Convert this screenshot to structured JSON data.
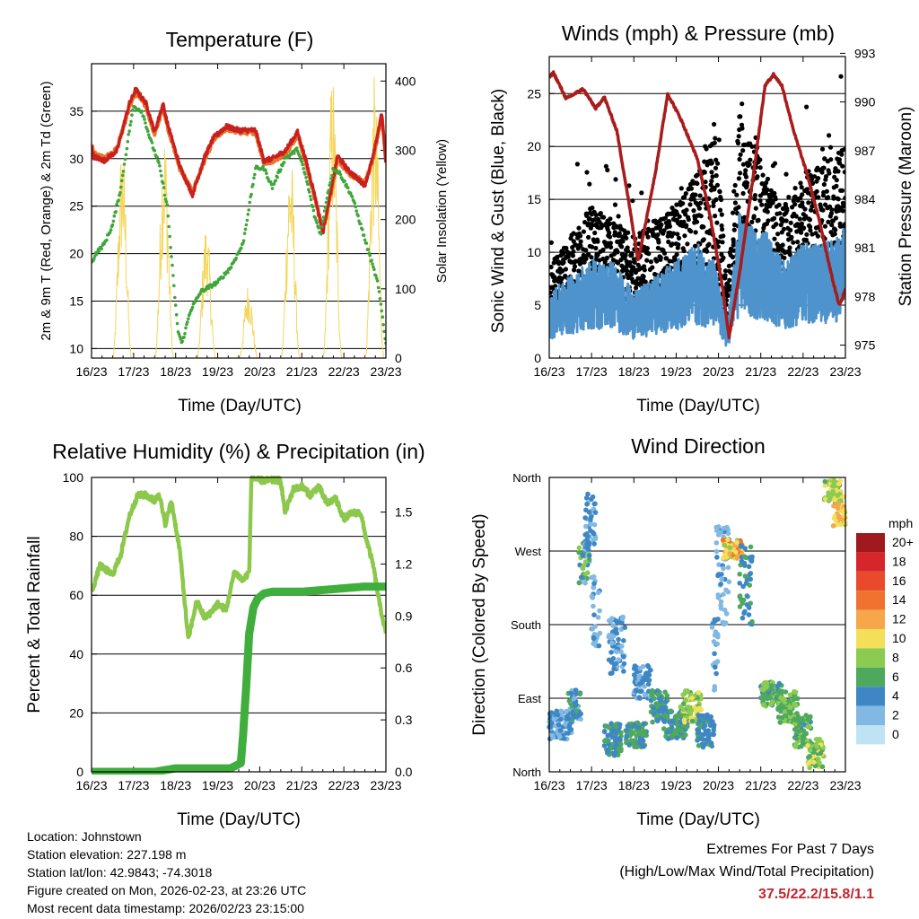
{
  "colors": {
    "temp2m": "#e8732a",
    "temp9m": "#c8201e",
    "dewpoint": "#3fa63a",
    "solar": "#f3d65a",
    "gust": "#000000",
    "wind": "#4e93cc",
    "pressure": "#a81c1c",
    "rh": "#8cc84b",
    "precip": "#3fae3c",
    "extremes_text": "#c0262d"
  },
  "time_ticks": [
    "16/23",
    "17/23",
    "18/23",
    "19/23",
    "20/23",
    "21/23",
    "22/23",
    "23/23"
  ],
  "chart_data": [
    {
      "id": "temperature",
      "type": "line",
      "title": "Temperature (F)",
      "xlabel": "Time (Day/UTC)",
      "ylabel": "2m & 9m T (Red, Orange) & 2m Td (Green)",
      "y2label": "Solar Insolation (Yellow)",
      "xlim": [
        0,
        7
      ],
      "ylim": [
        9,
        40
      ],
      "yticks": [
        10,
        15,
        20,
        25,
        30,
        35
      ],
      "y2lim": [
        0,
        425
      ],
      "y2ticks": [
        0,
        100,
        200,
        300,
        400
      ],
      "series": [
        {
          "name": "2m T",
          "color_key": "temp2m",
          "x": [
            0,
            0.05,
            0.3,
            0.6,
            0.9,
            1.05,
            1.3,
            1.5,
            1.7,
            1.8,
            2.1,
            2.4,
            2.7,
            2.9,
            3.2,
            3.5,
            3.9,
            4.1,
            4.3,
            4.6,
            4.9,
            5.1,
            5.3,
            5.5,
            5.7,
            5.85,
            6.1,
            6.5,
            6.7,
            6.9,
            7
          ],
          "y": [
            31.5,
            30.5,
            30,
            31,
            35.5,
            37,
            35.5,
            32.5,
            35.5,
            33.5,
            29,
            26.5,
            30,
            32,
            33.2,
            32.8,
            32.8,
            29.5,
            29.8,
            30.5,
            32.5,
            29.5,
            26,
            22.5,
            26.5,
            30,
            28.5,
            27.5,
            30,
            34.5,
            30
          ]
        },
        {
          "name": "9m T",
          "color_key": "temp9m",
          "x": [
            0,
            0.05,
            0.3,
            0.6,
            0.9,
            1.05,
            1.3,
            1.5,
            1.7,
            1.8,
            2.1,
            2.4,
            2.7,
            2.9,
            3.2,
            3.5,
            3.9,
            4.1,
            4.3,
            4.6,
            4.9,
            5.1,
            5.3,
            5.5,
            5.7,
            5.85,
            6.1,
            6.5,
            6.7,
            6.9,
            7
          ],
          "y": [
            31.2,
            30.2,
            29.8,
            30.8,
            35.8,
            37.3,
            35.8,
            32.8,
            35.8,
            33.8,
            29.2,
            26.2,
            30.3,
            32.2,
            33.4,
            33,
            33,
            29.8,
            30,
            30.8,
            32.8,
            29.8,
            26.3,
            22.2,
            26.8,
            30.3,
            28.8,
            27.2,
            30.3,
            34.8,
            29.5
          ]
        },
        {
          "name": "2m Td",
          "color_key": "dewpoint",
          "x": [
            0,
            0.1,
            0.3,
            0.5,
            0.7,
            0.9,
            1.0,
            1.2,
            1.4,
            1.6,
            1.8,
            1.95,
            2.05,
            2.15,
            2.35,
            2.6,
            3.0,
            3.3,
            3.6,
            3.9,
            4.1,
            4.3,
            4.6,
            4.9,
            5.1,
            5.3,
            5.45,
            5.6,
            5.75,
            5.9,
            6.2,
            6.5,
            6.8,
            6.9,
            7
          ],
          "y": [
            19,
            20,
            21,
            23,
            27,
            33,
            35.5,
            35,
            32,
            29.5,
            25,
            17,
            12,
            10.5,
            14,
            16,
            17,
            18.5,
            21,
            29,
            29,
            27,
            30,
            31,
            28,
            24,
            22,
            26,
            29,
            28.5,
            26,
            21.5,
            17,
            14,
            10.5
          ]
        }
      ],
      "solar": {
        "name": "Solar Insolation",
        "color_key": "solar",
        "peaks": [
          {
            "center": 0.73,
            "width": 0.45,
            "peak": 320
          },
          {
            "center": 1.73,
            "width": 0.45,
            "peak": 340
          },
          {
            "center": 2.73,
            "width": 0.45,
            "peak": 200
          },
          {
            "center": 3.73,
            "width": 0.45,
            "peak": 110
          },
          {
            "center": 4.73,
            "width": 0.45,
            "peak": 305
          },
          {
            "center": 5.73,
            "width": 0.45,
            "peak": 420
          },
          {
            "center": 6.73,
            "width": 0.45,
            "peak": 410
          }
        ]
      }
    },
    {
      "id": "winds",
      "type": "scatter+line",
      "title": "Winds (mph) & Pressure (mb)",
      "xlabel": "Time (Day/UTC)",
      "ylabel": "Sonic Wind & Gust (Blue, Black)",
      "y2label": "Station Pressure (Maroon)",
      "xlim": [
        0,
        7
      ],
      "ylim": [
        0,
        28.5
      ],
      "yticks": [
        0,
        5,
        10,
        15,
        20,
        25
      ],
      "y2lim": [
        974.2,
        992.8
      ],
      "y2ticks": [
        975,
        978,
        981,
        984,
        987,
        990,
        993
      ],
      "wind_mean": {
        "x": [
          0,
          0.5,
          1.0,
          1.5,
          2.0,
          2.5,
          3.0,
          3.5,
          3.9,
          4.2,
          4.5,
          4.8,
          5.1,
          5.5,
          6.0,
          6.5,
          7
        ],
        "y": [
          4,
          5,
          6,
          6,
          4,
          5,
          6,
          7,
          6,
          2,
          9,
          8,
          8,
          6,
          7,
          7,
          8
        ]
      },
      "gust_mean": {
        "x": [
          0,
          0.5,
          1.0,
          1.5,
          2.0,
          2.5,
          3.0,
          3.5,
          3.9,
          4.2,
          4.5,
          4.8,
          5.1,
          5.5,
          6.0,
          6.5,
          7
        ],
        "y": [
          6,
          8,
          10,
          9,
          8,
          9,
          10,
          12,
          16,
          5,
          16,
          14,
          12,
          10,
          12,
          13,
          14
        ]
      },
      "pressure": {
        "x": [
          0,
          0.1,
          0.4,
          0.8,
          1.1,
          1.3,
          1.6,
          1.9,
          2.1,
          2.5,
          2.8,
          3.1,
          3.5,
          3.8,
          4.1,
          4.25,
          4.5,
          4.8,
          5.1,
          5.3,
          5.5,
          5.8,
          6.1,
          6.4,
          6.7,
          6.85,
          6.92,
          7
        ],
        "y": [
          991.5,
          991.8,
          990.2,
          990.8,
          989.6,
          990.3,
          988.2,
          983.5,
          980.2,
          985.5,
          990.5,
          989,
          986.5,
          983,
          978.5,
          975.5,
          979.5,
          985,
          991,
          991.7,
          991,
          988,
          985.5,
          982.5,
          979,
          977.5,
          977.8,
          978.5
        ]
      }
    },
    {
      "id": "humidity",
      "type": "line",
      "title": "Relative Humidity (%) & Precipitation (in)",
      "xlabel": "Time (Day/UTC)",
      "ylabel": "Percent & Total Rainfall",
      "xlim": [
        0,
        7
      ],
      "ylim": [
        0,
        100
      ],
      "yticks": [
        0,
        20,
        40,
        60,
        80,
        100
      ],
      "y2lim": [
        0,
        1.7
      ],
      "y2ticks": [
        0.0,
        0.3,
        0.6,
        0.9,
        1.2,
        1.5
      ],
      "y2tick_labels": [
        "0.0",
        "0.3",
        "0.6",
        "0.9",
        "1.2",
        "1.5"
      ],
      "series": [
        {
          "name": "Relative Humidity",
          "color_key": "rh",
          "x": [
            0,
            0.2,
            0.5,
            0.7,
            0.9,
            1.1,
            1.3,
            1.5,
            1.6,
            1.75,
            1.9,
            2.1,
            2.3,
            2.5,
            2.7,
            3.0,
            3.2,
            3.4,
            3.6,
            3.75,
            3.8,
            4.0,
            4.2,
            4.5,
            4.6,
            4.8,
            5.0,
            5.2,
            5.4,
            5.6,
            5.8,
            6.0,
            6.2,
            6.4,
            6.5,
            6.7,
            6.85,
            7
          ],
          "y": [
            61,
            70,
            67,
            74,
            87,
            94,
            94,
            92,
            95,
            84,
            92,
            75,
            45,
            58,
            52,
            57,
            55,
            68,
            65,
            68,
            100,
            99,
            99,
            99,
            88,
            96,
            97,
            94,
            97,
            91,
            93,
            86,
            88,
            88,
            81,
            70,
            57,
            47
          ]
        },
        {
          "name": "Total Precipitation",
          "color_key": "precip",
          "x": [
            0,
            1.5,
            2.0,
            3.3,
            3.55,
            3.6,
            3.68,
            3.75,
            3.85,
            3.95,
            4.1,
            4.3,
            5.0,
            5.5,
            6.0,
            6.5,
            7
          ],
          "y": [
            0,
            0,
            0.02,
            0.02,
            0.05,
            0.2,
            0.5,
            0.8,
            0.95,
            1.0,
            1.03,
            1.04,
            1.04,
            1.05,
            1.06,
            1.07,
            1.07
          ]
        }
      ]
    },
    {
      "id": "direction",
      "type": "scatter",
      "title": "Wind Direction",
      "xlabel": "Time (Day/UTC)",
      "ylabel": "Direction (Colored By Speed)",
      "xlim": [
        0,
        7
      ],
      "ylim": [
        0,
        360
      ],
      "yticks": [
        0,
        90,
        180,
        270,
        360
      ],
      "ytick_labels": [
        "North",
        "East",
        "South",
        "West",
        "North"
      ],
      "clusters": [
        {
          "x0": 0.0,
          "x1": 0.55,
          "dir": [
            40,
            75
          ],
          "speed": [
            1,
            5
          ]
        },
        {
          "x0": 0.45,
          "x1": 0.75,
          "dir": [
            60,
            100
          ],
          "speed": [
            2,
            6
          ]
        },
        {
          "x0": 0.7,
          "x1": 0.95,
          "dir": [
            230,
            280
          ],
          "speed": [
            2,
            8
          ]
        },
        {
          "x0": 0.85,
          "x1": 1.1,
          "dir": [
            270,
            340
          ],
          "speed": [
            2,
            5
          ]
        },
        {
          "x0": 1.0,
          "x1": 1.2,
          "dir": [
            150,
            240
          ],
          "speed": [
            1,
            4
          ]
        },
        {
          "x0": 1.3,
          "x1": 1.7,
          "dir": [
            20,
            60
          ],
          "speed": [
            3,
            7
          ]
        },
        {
          "x0": 1.4,
          "x1": 1.8,
          "dir": [
            120,
            190
          ],
          "speed": [
            2,
            5
          ]
        },
        {
          "x0": 1.8,
          "x1": 2.3,
          "dir": [
            30,
            60
          ],
          "speed": [
            4,
            7
          ]
        },
        {
          "x0": 2.0,
          "x1": 2.4,
          "dir": [
            90,
            130
          ],
          "speed": [
            2,
            5
          ]
        },
        {
          "x0": 2.4,
          "x1": 2.8,
          "dir": [
            60,
            100
          ],
          "speed": [
            4,
            7
          ]
        },
        {
          "x0": 2.7,
          "x1": 3.3,
          "dir": [
            40,
            75
          ],
          "speed": [
            3,
            7
          ]
        },
        {
          "x0": 3.1,
          "x1": 3.6,
          "dir": [
            60,
            100
          ],
          "speed": [
            6,
            11
          ]
        },
        {
          "x0": 3.5,
          "x1": 3.9,
          "dir": [
            30,
            70
          ],
          "speed": [
            3,
            6
          ]
        },
        {
          "x0": 3.85,
          "x1": 4.0,
          "dir": [
            100,
            200
          ],
          "speed": [
            1,
            4
          ]
        },
        {
          "x0": 3.95,
          "x1": 4.25,
          "dir": [
            180,
            300
          ],
          "speed": [
            1,
            4
          ]
        },
        {
          "x0": 4.1,
          "x1": 4.6,
          "dir": [
            260,
            285
          ],
          "speed": [
            8,
            16
          ]
        },
        {
          "x0": 4.5,
          "x1": 4.8,
          "dir": [
            180,
            280
          ],
          "speed": [
            3,
            7
          ]
        },
        {
          "x0": 5.0,
          "x1": 5.5,
          "dir": [
            80,
            110
          ],
          "speed": [
            4,
            9
          ]
        },
        {
          "x0": 5.4,
          "x1": 5.9,
          "dir": [
            60,
            100
          ],
          "speed": [
            5,
            8
          ]
        },
        {
          "x0": 5.8,
          "x1": 6.2,
          "dir": [
            30,
            70
          ],
          "speed": [
            4,
            8
          ]
        },
        {
          "x0": 6.1,
          "x1": 6.5,
          "dir": [
            5,
            40
          ],
          "speed": [
            6,
            10
          ]
        },
        {
          "x0": 6.5,
          "x1": 6.9,
          "dir": [
            330,
            358
          ],
          "speed": [
            6,
            11
          ]
        },
        {
          "x0": 6.7,
          "x1": 7.0,
          "dir": [
            300,
            340
          ],
          "speed": [
            8,
            13
          ]
        }
      ],
      "colorbar": {
        "title": "mph",
        "labels": [
          "20+",
          "18",
          "16",
          "14",
          "12",
          "10",
          "8",
          "6",
          "4",
          "2",
          "0"
        ],
        "colors": [
          "#9e1a1d",
          "#d7262b",
          "#e94a2b",
          "#f0722f",
          "#f6a74b",
          "#f4df5a",
          "#8ccb51",
          "#4ea95e",
          "#3f87c4",
          "#82b9e3",
          "#bfe3f5"
        ]
      }
    }
  ],
  "info": {
    "location": "Location: Johnstown",
    "elevation": "Station elevation: 227.198 m",
    "latlon": "Station lat/lon: 42.9843; -74.3018",
    "created": "Figure created on Mon, 2026-02-23, at 23:26 UTC",
    "recent": "Most recent data timestamp: 2026/02/23 23:15:00"
  },
  "extremes": {
    "line1": "Extremes For Past 7 Days",
    "line2": "(High/Low/Max Wind/Total Precipitation)",
    "values": "37.5/22.2/15.8/1.1"
  }
}
